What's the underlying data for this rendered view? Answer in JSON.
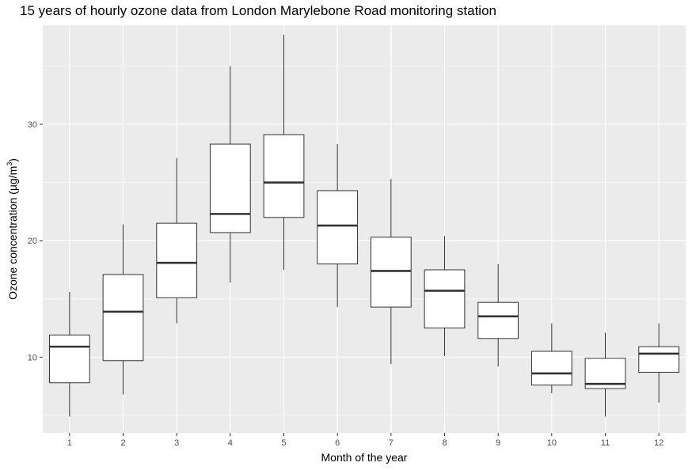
{
  "chart_data": {
    "type": "boxplot",
    "title": "15 years of hourly ozone data from London Marylebone Road monitoring station",
    "xlabel": "Month of the year",
    "ylabel_prefix": "Ozone concentration (µg/m",
    "ylabel_sup": "3",
    "ylabel_suffix": ")",
    "ylim": [
      3.5,
      38.5
    ],
    "yticks": [
      10,
      20,
      30
    ],
    "categories": [
      "1",
      "2",
      "3",
      "4",
      "5",
      "6",
      "7",
      "8",
      "9",
      "10",
      "11",
      "12"
    ],
    "boxes": [
      {
        "month": "1",
        "min": 4.9,
        "q1": 7.8,
        "median": 10.9,
        "q3": 11.9,
        "max": 15.6
      },
      {
        "month": "2",
        "min": 6.8,
        "q1": 9.7,
        "median": 13.9,
        "q3": 17.1,
        "max": 21.4
      },
      {
        "month": "3",
        "min": 12.9,
        "q1": 15.1,
        "median": 18.1,
        "q3": 21.5,
        "max": 27.1
      },
      {
        "month": "4",
        "min": 16.4,
        "q1": 20.7,
        "median": 22.3,
        "q3": 28.3,
        "max": 35.0
      },
      {
        "month": "5",
        "min": 17.5,
        "q1": 22.0,
        "median": 25.0,
        "q3": 29.1,
        "max": 37.7
      },
      {
        "month": "6",
        "min": 14.3,
        "q1": 18.0,
        "median": 21.3,
        "q3": 24.3,
        "max": 28.3
      },
      {
        "month": "7",
        "min": 9.4,
        "q1": 14.3,
        "median": 17.4,
        "q3": 20.3,
        "max": 25.3
      },
      {
        "month": "8",
        "min": 10.1,
        "q1": 12.5,
        "median": 15.7,
        "q3": 17.5,
        "max": 20.4
      },
      {
        "month": "9",
        "min": 9.2,
        "q1": 11.6,
        "median": 13.5,
        "q3": 14.7,
        "max": 18.0
      },
      {
        "month": "10",
        "min": 6.9,
        "q1": 7.6,
        "median": 8.6,
        "q3": 10.5,
        "max": 12.9
      },
      {
        "month": "11",
        "min": 4.9,
        "q1": 7.3,
        "median": 7.7,
        "q3": 9.9,
        "max": 12.1
      },
      {
        "month": "12",
        "min": 6.1,
        "q1": 8.7,
        "median": 10.3,
        "q3": 10.9,
        "max": 12.9
      }
    ],
    "grid": true,
    "panel_color": "#ebebeb",
    "grid_color": "#ffffff",
    "box_fill": "#ffffff",
    "line_color": "#333333"
  }
}
